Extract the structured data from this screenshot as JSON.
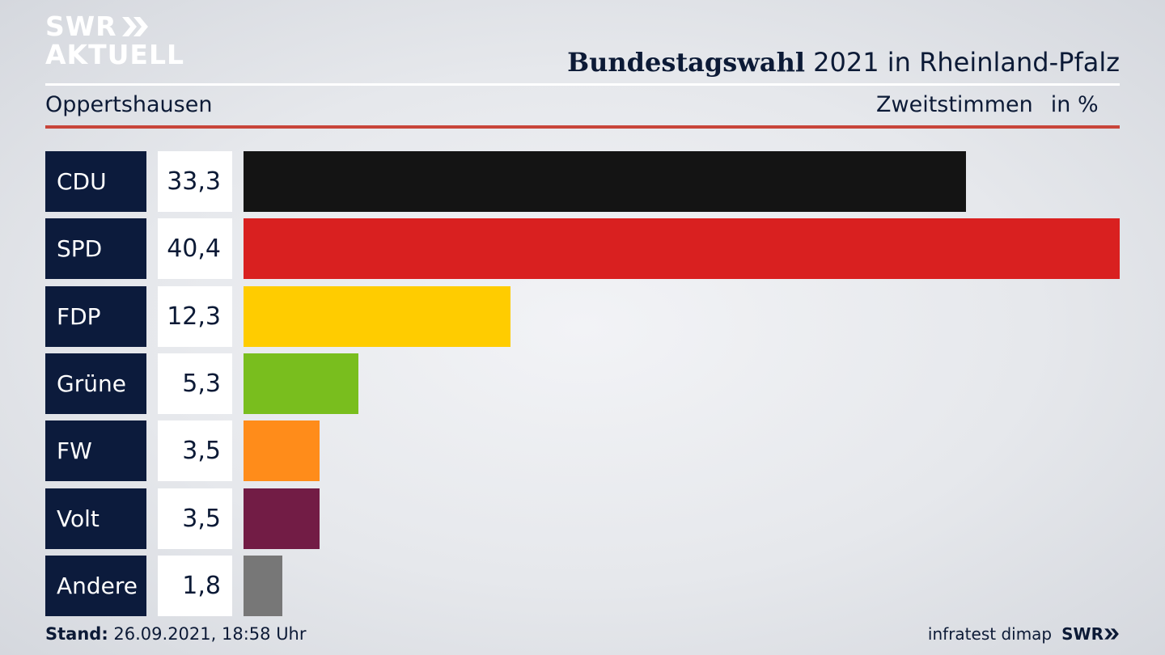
{
  "header": {
    "logo_line1": "SWR",
    "logo_line2": "AKTUELL",
    "title_bold": "Bundestagswahl",
    "title_rest": "2021 in Rheinland-Pfalz",
    "location": "Oppertshausen",
    "measure": "Zweitstimmen",
    "unit": "in %"
  },
  "chart_data": {
    "type": "bar",
    "orientation": "horizontal",
    "categories": [
      "CDU",
      "SPD",
      "FDP",
      "Grüne",
      "FW",
      "Volt",
      "Andere"
    ],
    "values": [
      33.3,
      40.4,
      12.3,
      5.3,
      3.5,
      3.5,
      1.8
    ],
    "value_labels": [
      "33,3",
      "40,4",
      "12,3",
      "5,3",
      "3,5",
      "3,5",
      "1,8"
    ],
    "colors": [
      "#141414",
      "#d92020",
      "#ffcc00",
      "#79be1e",
      "#ff8c1a",
      "#721c45",
      "#777777"
    ],
    "xlim": [
      0,
      40.4
    ]
  },
  "footer": {
    "stand_label": "Stand:",
    "stand_value": "26.09.2021, 18:58 Uhr",
    "source": "infratest dimap",
    "brand": "SWR"
  },
  "colors": {
    "navy": "#0c1b3c",
    "accent_red": "#c8453a"
  }
}
